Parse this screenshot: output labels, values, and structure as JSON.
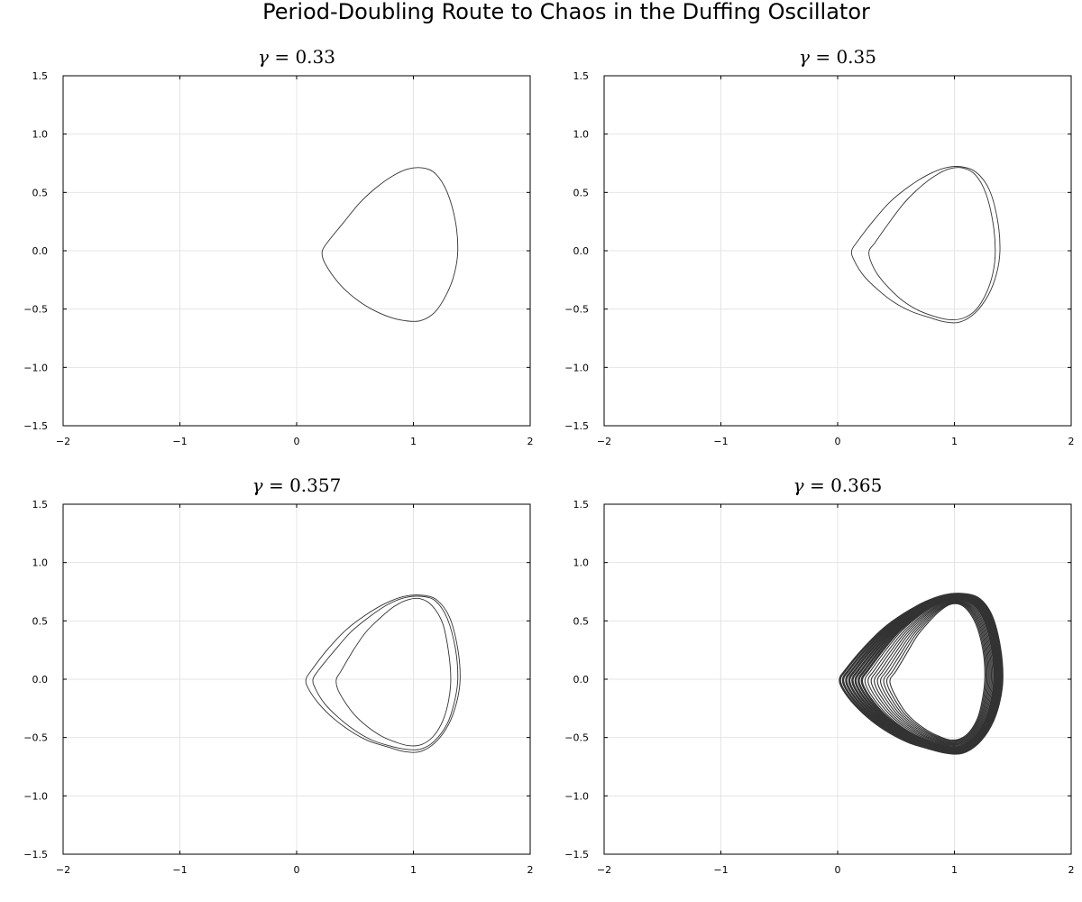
{
  "figure": {
    "suptitle": "Period-Doubling Route to Chaos in the Duffing Oscillator",
    "line_color": "#333333",
    "grid_color": "#e4e4e4"
  },
  "chart_data": [
    {
      "type": "line",
      "title": "γ = 0.33",
      "param": {
        "symbol": "γ",
        "value": "0.33"
      },
      "xlim": [
        -2,
        2
      ],
      "ylim": [
        -1.5,
        1.5
      ],
      "xticks": [
        -2,
        -1,
        0,
        1,
        2
      ],
      "yticks": [
        -1.5,
        -1.0,
        -0.5,
        0.0,
        0.5,
        1.0,
        1.5
      ],
      "xtick_labels": [
        "−2",
        "−1",
        "0",
        "1",
        "2"
      ],
      "ytick_labels": [
        "−1.5",
        "−1.0",
        "−0.5",
        "0.0",
        "0.5",
        "1.0",
        "1.5"
      ],
      "grid": true,
      "legend": "none",
      "series": [
        {
          "closed": true,
          "x": [
            1.38,
            1.36,
            1.29,
            1.19,
            1.08,
            0.95,
            0.82,
            0.68,
            0.54,
            0.4,
            0.27,
            0.22,
            0.23,
            0.3,
            0.4,
            0.53,
            0.66,
            0.8,
            0.93,
            1.06,
            1.18,
            1.28,
            1.35
          ],
          "y": [
            0.0,
            0.25,
            0.5,
            0.66,
            0.71,
            0.7,
            0.64,
            0.54,
            0.41,
            0.24,
            0.08,
            0.0,
            -0.08,
            -0.2,
            -0.32,
            -0.43,
            -0.51,
            -0.57,
            -0.6,
            -0.6,
            -0.53,
            -0.38,
            -0.2
          ]
        }
      ]
    },
    {
      "type": "line",
      "title": "γ = 0.35",
      "param": {
        "symbol": "γ",
        "value": "0.35"
      },
      "xlim": [
        -2,
        2
      ],
      "ylim": [
        -1.5,
        1.5
      ],
      "xticks": [
        -2,
        -1,
        0,
        1,
        2
      ],
      "yticks": [
        -1.5,
        -1.0,
        -0.5,
        0.0,
        0.5,
        1.0,
        1.5
      ],
      "xtick_labels": [
        "−2",
        "−1",
        "0",
        "1",
        "2"
      ],
      "ytick_labels": [
        "−1.5",
        "−1.0",
        "−0.5",
        "0.0",
        "0.5",
        "1.0",
        "1.5"
      ],
      "grid": true,
      "legend": "none",
      "series": [
        {
          "closed": true,
          "x": [
            1.39,
            1.37,
            1.3,
            1.19,
            1.06,
            0.92,
            0.77,
            0.61,
            0.45,
            0.3,
            0.17,
            0.12,
            0.14,
            0.22,
            0.34,
            0.48,
            0.63,
            0.78,
            0.92,
            1.05,
            1.18,
            1.29,
            1.36
          ],
          "y": [
            0.0,
            0.26,
            0.52,
            0.67,
            0.72,
            0.71,
            0.65,
            0.55,
            0.42,
            0.25,
            0.08,
            0.0,
            -0.08,
            -0.21,
            -0.33,
            -0.44,
            -0.52,
            -0.57,
            -0.61,
            -0.61,
            -0.53,
            -0.38,
            -0.2
          ]
        },
        {
          "closed": true,
          "x": [
            1.35,
            1.33,
            1.27,
            1.18,
            1.07,
            0.95,
            0.83,
            0.7,
            0.57,
            0.44,
            0.32,
            0.27,
            0.28,
            0.34,
            0.44,
            0.56,
            0.69,
            0.82,
            0.95,
            1.07,
            1.18,
            1.27,
            1.33
          ],
          "y": [
            0.0,
            0.24,
            0.49,
            0.65,
            0.71,
            0.7,
            0.64,
            0.54,
            0.41,
            0.24,
            0.07,
            0.0,
            -0.08,
            -0.2,
            -0.32,
            -0.43,
            -0.51,
            -0.56,
            -0.59,
            -0.58,
            -0.51,
            -0.37,
            -0.19
          ]
        }
      ]
    },
    {
      "type": "line",
      "title": "γ = 0.357",
      "param": {
        "symbol": "γ",
        "value": "0.357"
      },
      "xlim": [
        -2,
        2
      ],
      "ylim": [
        -1.5,
        1.5
      ],
      "xticks": [
        -2,
        -1,
        0,
        1,
        2
      ],
      "yticks": [
        -1.5,
        -1.0,
        -0.5,
        0.0,
        0.5,
        1.0,
        1.5
      ],
      "xtick_labels": [
        "−2",
        "−1",
        "0",
        "1",
        "2"
      ],
      "ytick_labels": [
        "−1.5",
        "−1.0",
        "−0.5",
        "0.0",
        "0.5",
        "1.0",
        "1.5"
      ],
      "grid": true,
      "legend": "none",
      "series": [
        {
          "closed": true,
          "x": [
            1.4,
            1.38,
            1.31,
            1.2,
            1.07,
            0.92,
            0.76,
            0.59,
            0.42,
            0.26,
            0.13,
            0.08,
            0.1,
            0.19,
            0.32,
            0.47,
            0.62,
            0.78,
            0.92,
            1.06,
            1.19,
            1.3,
            1.37
          ],
          "y": [
            0.0,
            0.26,
            0.53,
            0.68,
            0.72,
            0.71,
            0.65,
            0.55,
            0.42,
            0.25,
            0.08,
            0.0,
            -0.08,
            -0.21,
            -0.34,
            -0.45,
            -0.53,
            -0.58,
            -0.62,
            -0.62,
            -0.54,
            -0.39,
            -0.2
          ]
        },
        {
          "closed": true,
          "x": [
            1.38,
            1.36,
            1.29,
            1.19,
            1.07,
            0.93,
            0.78,
            0.63,
            0.47,
            0.32,
            0.19,
            0.14,
            0.16,
            0.24,
            0.36,
            0.5,
            0.64,
            0.79,
            0.93,
            1.06,
            1.18,
            1.29,
            1.35
          ],
          "y": [
            0.0,
            0.26,
            0.52,
            0.67,
            0.71,
            0.7,
            0.64,
            0.54,
            0.41,
            0.24,
            0.08,
            0.0,
            -0.08,
            -0.21,
            -0.33,
            -0.44,
            -0.52,
            -0.57,
            -0.6,
            -0.6,
            -0.53,
            -0.38,
            -0.2
          ]
        },
        {
          "closed": true,
          "x": [
            1.32,
            1.3,
            1.25,
            1.16,
            1.06,
            0.95,
            0.83,
            0.71,
            0.59,
            0.48,
            0.38,
            0.34,
            0.35,
            0.41,
            0.5,
            0.61,
            0.73,
            0.85,
            0.96,
            1.07,
            1.17,
            1.25,
            1.3
          ],
          "y": [
            0.0,
            0.24,
            0.48,
            0.63,
            0.69,
            0.68,
            0.62,
            0.52,
            0.4,
            0.24,
            0.07,
            0.0,
            -0.08,
            -0.19,
            -0.31,
            -0.41,
            -0.49,
            -0.54,
            -0.57,
            -0.56,
            -0.49,
            -0.36,
            -0.19
          ]
        }
      ]
    },
    {
      "type": "line",
      "title": "γ = 0.365",
      "param": {
        "symbol": "γ",
        "value": "0.365"
      },
      "xlim": [
        -2,
        2
      ],
      "ylim": [
        -1.5,
        1.5
      ],
      "xticks": [
        -2,
        -1,
        0,
        1,
        2
      ],
      "yticks": [
        -1.5,
        -1.0,
        -0.5,
        0.0,
        0.5,
        1.0,
        1.5
      ],
      "xtick_labels": [
        "−2",
        "−1",
        "0",
        "1",
        "2"
      ],
      "ytick_labels": [
        "−1.5",
        "−1.0",
        "−0.5",
        "0.0",
        "0.5",
        "1.0",
        "1.5"
      ],
      "grid": true,
      "legend": "none",
      "band": {
        "x_min": 0.02,
        "x_max": 1.41,
        "y_min": -0.63,
        "y_max": 0.73,
        "inner_x_min": 0.45,
        "inner_x_max": 1.26
      },
      "series": [
        {
          "closed": true,
          "x": [
            1.41,
            1.39,
            1.32,
            1.21,
            1.07,
            0.92,
            0.75,
            0.57,
            0.39,
            0.22,
            0.07,
            0.02,
            0.05,
            0.15,
            0.29,
            0.45,
            0.61,
            0.77,
            0.93,
            1.07,
            1.2,
            1.31,
            1.38
          ],
          "y": [
            0.0,
            0.27,
            0.54,
            0.69,
            0.73,
            0.72,
            0.66,
            0.56,
            0.43,
            0.26,
            0.08,
            0.0,
            -0.09,
            -0.22,
            -0.35,
            -0.46,
            -0.54,
            -0.59,
            -0.63,
            -0.63,
            -0.55,
            -0.4,
            -0.21
          ]
        },
        {
          "closed": true,
          "x": [
            1.26,
            1.25,
            1.2,
            1.13,
            1.05,
            0.96,
            0.87,
            0.78,
            0.68,
            0.59,
            0.5,
            0.45,
            0.46,
            0.51,
            0.58,
            0.67,
            0.77,
            0.87,
            0.96,
            1.05,
            1.13,
            1.2,
            1.24
          ],
          "y": [
            0.0,
            0.21,
            0.43,
            0.57,
            0.64,
            0.64,
            0.58,
            0.49,
            0.37,
            0.22,
            0.07,
            0.0,
            -0.07,
            -0.17,
            -0.28,
            -0.37,
            -0.44,
            -0.49,
            -0.52,
            -0.51,
            -0.45,
            -0.33,
            -0.17
          ]
        }
      ]
    }
  ]
}
